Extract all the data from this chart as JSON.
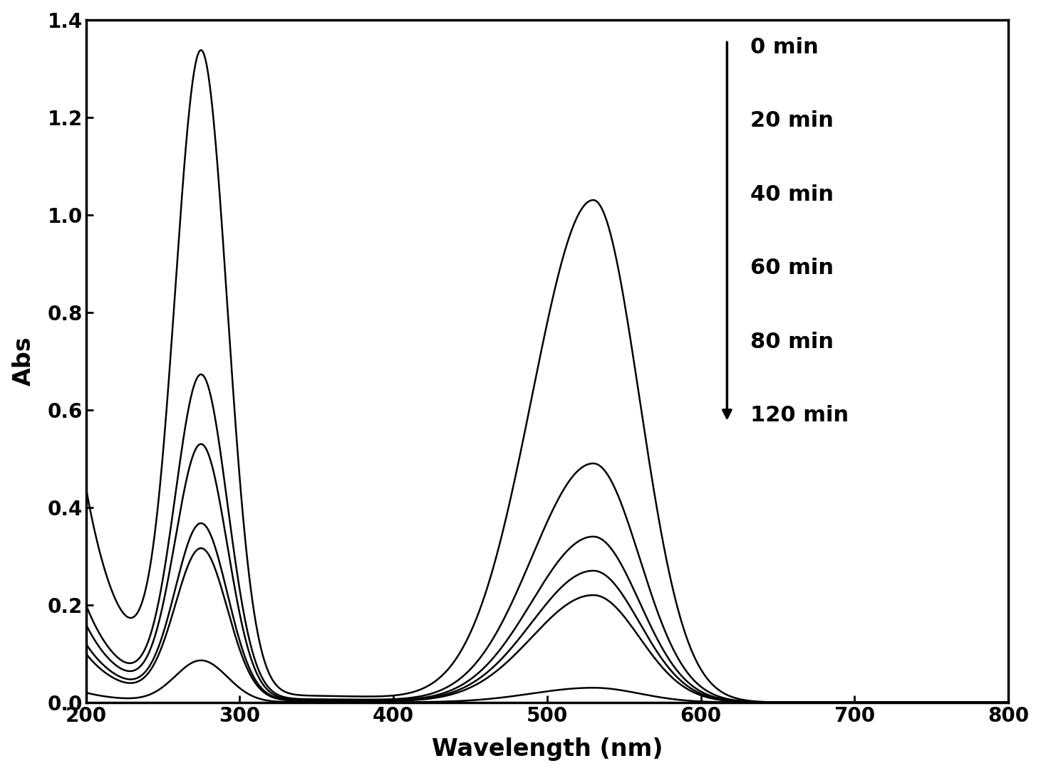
{
  "xlabel": "Wavelength (nm)",
  "ylabel": "Abs",
  "xlim": [
    200,
    800
  ],
  "ylim": [
    0,
    1.4
  ],
  "xticks": [
    200,
    300,
    400,
    500,
    600,
    700,
    800
  ],
  "yticks": [
    0.0,
    0.2,
    0.4,
    0.6,
    0.8,
    1.0,
    1.2,
    1.4
  ],
  "legend_labels": [
    "0 min",
    "20 min",
    "40 min",
    "60 min",
    "80 min",
    "120 min"
  ],
  "line_color": "#000000",
  "background_color": "#ffffff",
  "axis_label_fontsize": 24,
  "tick_fontsize": 20,
  "legend_fontsize": 22,
  "peak1_wl": 275,
  "peak2_wl": 530,
  "times": [
    0,
    20,
    40,
    60,
    80,
    120
  ],
  "peak1_abs": [
    1.31,
    0.66,
    0.52,
    0.36,
    0.31,
    0.085
  ],
  "peak2_abs": [
    1.03,
    0.49,
    0.34,
    0.27,
    0.22,
    0.03
  ],
  "uv_bg_abs": [
    0.44,
    0.2,
    0.16,
    0.12,
    0.1,
    0.02
  ]
}
